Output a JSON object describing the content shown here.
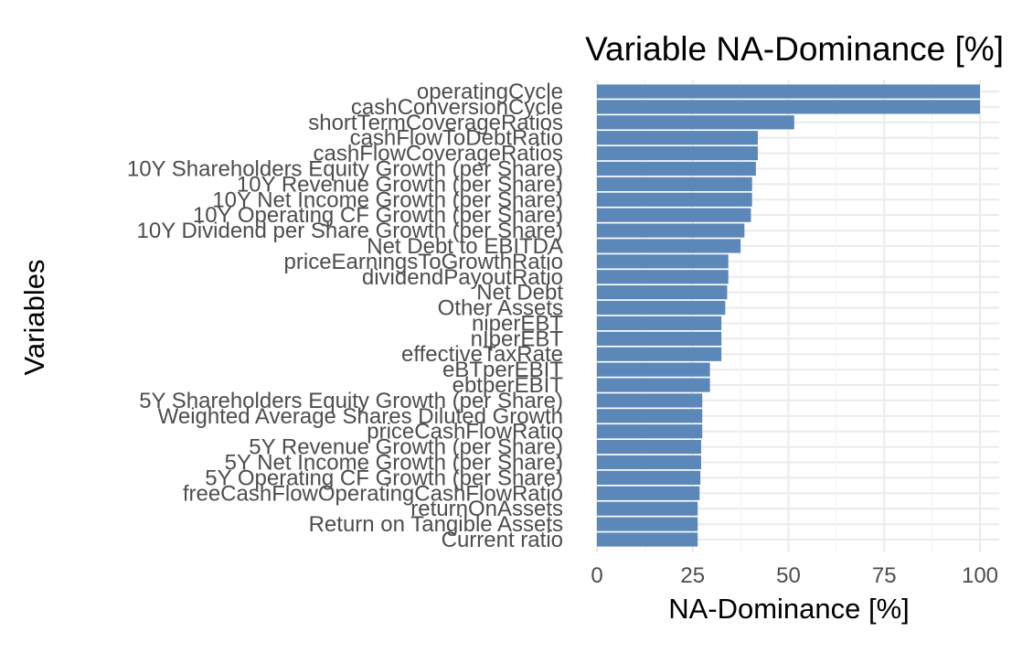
{
  "chart_data": {
    "type": "bar",
    "orientation": "horizontal",
    "title": "Variable NA-Dominance [%]",
    "xlabel": "NA-Dominance [%]",
    "ylabel": "Variables",
    "xlim": [
      0,
      100
    ],
    "xticks": [
      "0",
      "25",
      "50",
      "75",
      "100"
    ],
    "grid": true,
    "bar_color": "#5b87b9",
    "categories": [
      "operatingCycle",
      "cashConversionCycle",
      "shortTermCoverageRatios",
      "cashFlowToDebtRatio",
      "cashFlowCoverageRatios",
      "10Y Shareholders Equity Growth (per Share)",
      "10Y Revenue Growth (per Share)",
      "10Y Net Income Growth (per Share)",
      "10Y Operating CF Growth (per Share)",
      "10Y Dividend per Share Growth (per Share)",
      "Net Debt to EBITDA",
      "priceEarningsToGrowthRatio",
      "dividendPayoutRatio",
      "Net Debt",
      "Other Assets",
      "niperEBT",
      "nIperEBT",
      "effectiveTaxRate",
      "eBTperEBIT",
      "ebtperEBIT",
      "5Y Shareholders Equity Growth (per Share)",
      "Weighted Average Shares Diluted Growth",
      "priceCashFlowRatio",
      "5Y Revenue Growth (per Share)",
      "5Y Net Income Growth (per Share)",
      "5Y Operating CF Growth (per Share)",
      "freeCashFlowOperatingCashFlowRatio",
      "returnOnAssets",
      "Return on Tangible Assets",
      "Current ratio"
    ],
    "values": [
      100,
      100,
      51.5,
      42,
      42,
      41.5,
      40.5,
      40.5,
      40.2,
      38.5,
      37.5,
      34.3,
      34.3,
      34,
      33.5,
      32.5,
      32.5,
      32.5,
      29.5,
      29.5,
      27.5,
      27.5,
      27.5,
      27.2,
      27.2,
      27,
      26.8,
      26.3,
      26.3,
      26.3
    ]
  }
}
